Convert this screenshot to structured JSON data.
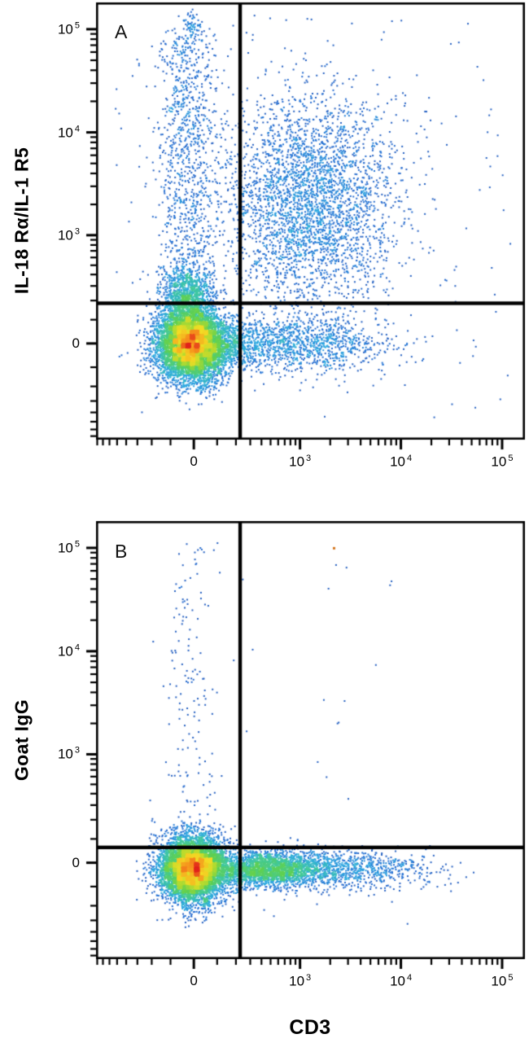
{
  "chart_data": {
    "type": "scatter",
    "subtype": "flow-cytometry-pseudocolor-density",
    "xlabel": "CD3",
    "axis_style": "biexponential (arcsinh) scale with 0 and log decades 10^3, 10^4, 10^5",
    "x_range": "approx -3x10^2 to 2x10^5",
    "y_range": "approx -3x10^2 to 2x10^5",
    "background_color": "#ffffff",
    "axis_color": "#000000",
    "outlier_color": "#d4761e",
    "colormap_stops": [
      [
        0.0,
        [
          35,
          72,
          165
        ]
      ],
      [
        0.18,
        [
          38,
          112,
          212
        ]
      ],
      [
        0.32,
        [
          44,
          170,
          224
        ]
      ],
      [
        0.45,
        [
          64,
          200,
          158
        ]
      ],
      [
        0.58,
        [
          96,
          208,
          80
        ]
      ],
      [
        0.7,
        [
          182,
          219,
          48
        ]
      ],
      [
        0.8,
        [
          243,
          221,
          38
        ]
      ],
      [
        0.9,
        [
          246,
          146,
          30
        ]
      ],
      [
        1.0,
        [
          225,
          36,
          28
        ]
      ]
    ],
    "panels": [
      {
        "letter": "A",
        "ylabel": "IL-18 Rα/IL-1 R5",
        "x_ticks": [
          {
            "v": 0,
            "base": "0"
          },
          {
            "v": 1000,
            "base": "10",
            "sup": "3"
          },
          {
            "v": 10000,
            "base": "10",
            "sup": "4"
          },
          {
            "v": 100000,
            "base": "10",
            "sup": "5"
          }
        ],
        "y_ticks": [
          {
            "v": 100000,
            "base": "10",
            "sup": "5"
          },
          {
            "v": 10000,
            "base": "10",
            "sup": "4"
          },
          {
            "v": 1000,
            "base": "10",
            "sup": "3"
          },
          {
            "v": 0,
            "base": "0"
          }
        ],
        "quadrant_gate": {
          "x_frac": 0.336,
          "y_frac": 0.688
        },
        "populations": [
          {
            "desc": "CD3- IL-18Ra- main population at origin, red/yellow dense core",
            "type": "gauss",
            "n": 7000,
            "cx": 0.222,
            "cy": 0.78,
            "sx": 0.04,
            "sy": 0.042
          },
          {
            "desc": "shoulder extending right of origin along y=0",
            "type": "gauss",
            "n": 500,
            "cx": 0.3,
            "cy": 0.785,
            "sx": 0.05,
            "sy": 0.028
          },
          {
            "desc": "green cap just above horizontal gate at x=0",
            "type": "gauss",
            "n": 800,
            "cx": 0.215,
            "cy": 0.668,
            "sx": 0.03,
            "sy": 0.032
          },
          {
            "desc": "CD3- column with elevated IL-18Ra up to 10^5",
            "type": "column",
            "n": 1100,
            "cx": 0.213,
            "sx": 0.036,
            "y0": 0.06,
            "y1": 0.72
          },
          {
            "desc": "small clump at top of CD3- column near 10^5",
            "type": "gauss",
            "n": 50,
            "cx": 0.225,
            "cy": 0.045,
            "sx": 0.012,
            "sy": 0.015
          },
          {
            "desc": "CD3+ IL-18Ra+ double-positive cloud around 10^3",
            "type": "gauss",
            "n": 3200,
            "cx": 0.5,
            "cy": 0.46,
            "sx": 0.1,
            "sy": 0.12
          },
          {
            "desc": "CD3+ IL-18Ra- band along y=0 out to ~10^4",
            "type": "gauss",
            "n": 1200,
            "cx": 0.46,
            "cy": 0.78,
            "sx": 0.11,
            "sy": 0.03
          },
          {
            "desc": "sparse background events",
            "type": "uniform",
            "n": 200,
            "x0": 0.04,
            "x1": 0.97,
            "y0": 0.03,
            "y1": 0.95
          }
        ]
      },
      {
        "letter": "B",
        "ylabel": "Goat IgG",
        "x_ticks": [
          {
            "v": 0,
            "base": "0"
          },
          {
            "v": 1000,
            "base": "10",
            "sup": "3"
          },
          {
            "v": 10000,
            "base": "10",
            "sup": "4"
          },
          {
            "v": 100000,
            "base": "10",
            "sup": "5"
          }
        ],
        "y_ticks": [
          {
            "v": 100000,
            "base": "10",
            "sup": "5"
          },
          {
            "v": 10000,
            "base": "10",
            "sup": "4"
          },
          {
            "v": 1000,
            "base": "10",
            "sup": "3"
          },
          {
            "v": 0,
            "base": "0"
          }
        ],
        "quadrant_gate": {
          "x_frac": 0.336,
          "y_frac": 0.745
        },
        "populations": [
          {
            "desc": "main population at origin, red dense core",
            "type": "gauss",
            "n": 6500,
            "cx": 0.225,
            "cy": 0.795,
            "sx": 0.037,
            "sy": 0.037
          },
          {
            "desc": "CD3+ band negative for Goat IgG control, green density",
            "type": "gauss",
            "n": 2600,
            "cx": 0.4,
            "cy": 0.795,
            "sx": 0.075,
            "sy": 0.02
          },
          {
            "desc": "band tail extending to ~5x10^3",
            "type": "gauss",
            "n": 700,
            "cx": 0.6,
            "cy": 0.795,
            "sx": 0.095,
            "sy": 0.022
          },
          {
            "desc": "sparse CD3- column up to 10^5",
            "type": "column",
            "n": 150,
            "cx": 0.22,
            "sx": 0.032,
            "y0": 0.05,
            "y1": 0.72
          },
          {
            "desc": "very sparse events upper-middle area",
            "type": "uniform",
            "n": 18,
            "x0": 0.15,
            "x1": 0.7,
            "y0": 0.08,
            "y1": 0.6
          },
          {
            "desc": "very sparse events near gate level",
            "type": "uniform",
            "n": 25,
            "x0": 0.1,
            "x1": 0.75,
            "y0": 0.55,
            "y1": 0.93
          },
          {
            "desc": "single orange event top-right",
            "type": "point",
            "x": 0.555,
            "y": 0.062
          }
        ]
      }
    ]
  }
}
